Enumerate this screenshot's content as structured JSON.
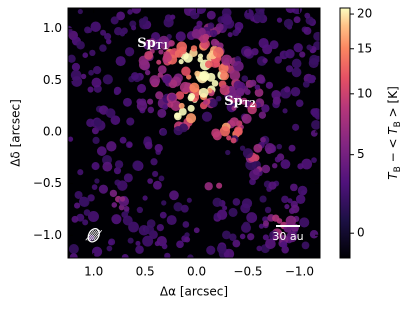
{
  "chart_data": {
    "type": "image",
    "xlabel": "Δα [arcsec]",
    "ylabel": "Δδ [arcsec]",
    "xlim": [
      1.25,
      -1.2
    ],
    "ylim": [
      -1.22,
      1.2
    ],
    "xticks": [
      {
        "value": 1.0,
        "label": "1.0"
      },
      {
        "value": 0.5,
        "label": "0.5"
      },
      {
        "value": 0.0,
        "label": "0.0"
      },
      {
        "value": -0.5,
        "label": "−0.5"
      },
      {
        "value": -1.0,
        "label": "−1.0"
      }
    ],
    "yticks": [
      {
        "value": 1.0,
        "label": "1.0"
      },
      {
        "value": 0.5,
        "label": "0.5"
      },
      {
        "value": 0.0,
        "label": "0.0"
      },
      {
        "value": -0.5,
        "label": "−0.5"
      },
      {
        "value": -1.0,
        "label": "−1.0"
      }
    ],
    "annotations": [
      {
        "text": "Sp",
        "sub": "T1"
      },
      {
        "text": "Sp",
        "sub": "T2"
      }
    ],
    "scalebar": "30 au",
    "colorbar": {
      "label": [
        {
          "text": "T"
        },
        {
          "text": "B",
          "sub": true
        },
        {
          "text": " − < "
        },
        {
          "text": "T"
        },
        {
          "text": "B",
          "sub": true
        },
        {
          "text": " > [K]"
        }
      ],
      "clim": [
        -1.5,
        21
      ],
      "stretch": "asinh",
      "ticks": [
        0,
        5,
        10,
        15,
        20
      ],
      "colormap": "magma"
    }
  }
}
